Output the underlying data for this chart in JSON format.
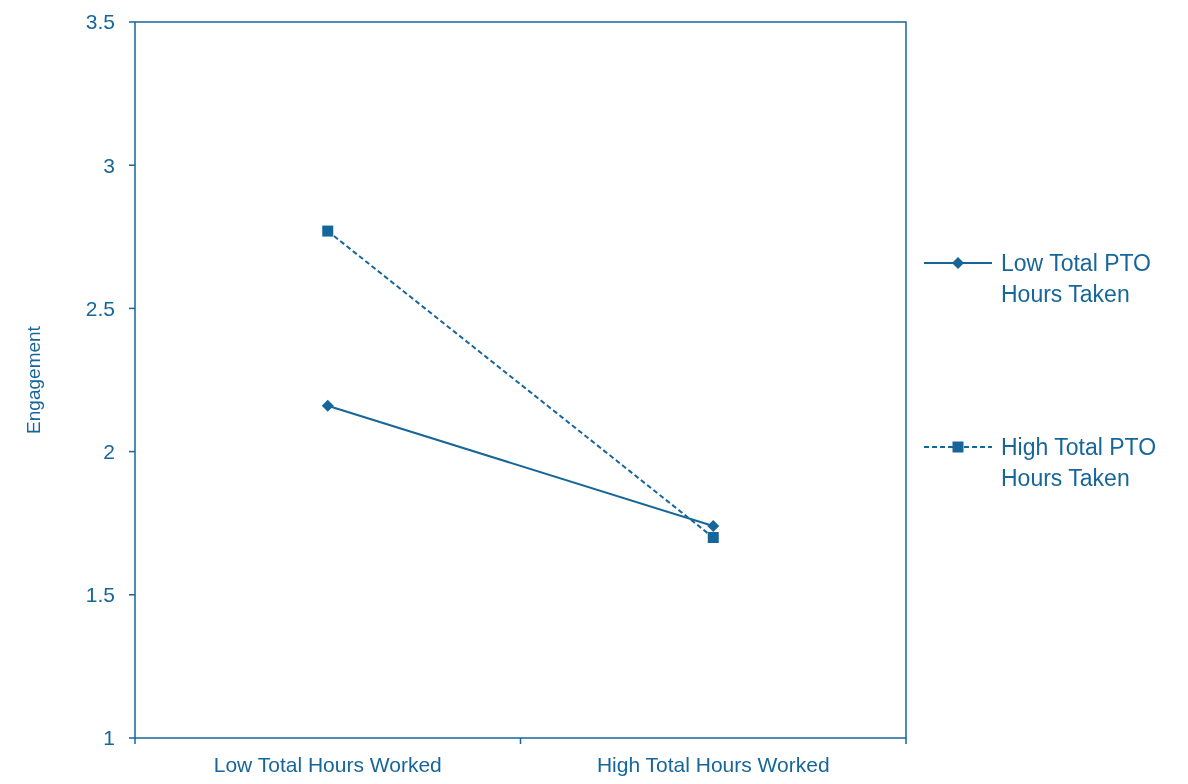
{
  "chart_data": {
    "type": "line",
    "ylabel": "Engagement",
    "categories": [
      "Low Total Hours Worked",
      "High Total Hours Worked"
    ],
    "series": [
      {
        "name": "Low Total PTO Hours Taken",
        "color": "#17669a",
        "values": [
          2.16,
          1.74
        ],
        "marker": "diamond",
        "line_style": "solid"
      },
      {
        "name": "High Total PTO Hours Taken",
        "color": "#17669a",
        "values": [
          2.77,
          1.7
        ],
        "marker": "square",
        "line_style": "dashed"
      }
    ],
    "ylim": [
      1,
      3.5
    ],
    "yticks": [
      1,
      1.5,
      2,
      2.5,
      3,
      3.5
    ],
    "grid": false,
    "legend": "right"
  }
}
